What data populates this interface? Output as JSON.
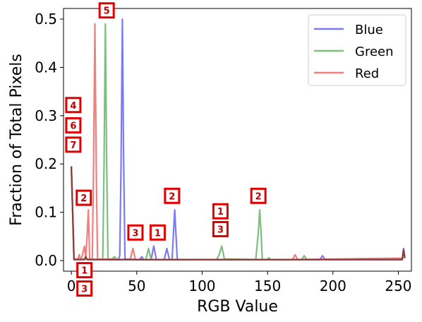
{
  "chart_data": {
    "type": "line",
    "xlabel": "RGB Value",
    "ylabel": "Fraction of Total Pixels",
    "xlim": [
      -6,
      260
    ],
    "ylim": [
      -0.022,
      0.522
    ],
    "xticks": [
      0,
      50,
      100,
      150,
      200,
      250
    ],
    "yticks": [
      0.0,
      0.1,
      0.2,
      0.3,
      0.4,
      0.5
    ],
    "xtick_labels": [
      "0",
      "50",
      "100",
      "150",
      "200",
      "250"
    ],
    "ytick_labels": [
      "0.0",
      "0.1",
      "0.2",
      "0.3",
      "0.4",
      "0.5"
    ],
    "grid": false,
    "legend_position": "top-right",
    "series": [
      {
        "name": "Blue",
        "color": "#7b7bf0",
        "points": [
          [
            0,
            0.195
          ],
          [
            1,
            0.1
          ],
          [
            2,
            0.003
          ],
          [
            30,
            0.002
          ],
          [
            36,
            0.002
          ],
          [
            37,
            0.01
          ],
          [
            38,
            0.2
          ],
          [
            39,
            0.5
          ],
          [
            40,
            0.2
          ],
          [
            41,
            0.003
          ],
          [
            52,
            0.002
          ],
          [
            54,
            0.008
          ],
          [
            55,
            0.002
          ],
          [
            61,
            0.002
          ],
          [
            63,
            0.03
          ],
          [
            65,
            0.002
          ],
          [
            71,
            0.002
          ],
          [
            73,
            0.025
          ],
          [
            75,
            0.002
          ],
          [
            77,
            0.002
          ],
          [
            79,
            0.105
          ],
          [
            81,
            0.002
          ],
          [
            190,
            0.002
          ],
          [
            192,
            0.01
          ],
          [
            194,
            0.002
          ],
          [
            253,
            0.002
          ],
          [
            254,
            0.025
          ],
          [
            255,
            0.005
          ]
        ]
      },
      {
        "name": "Green",
        "color": "#7dbf7d",
        "points": [
          [
            0,
            0.195
          ],
          [
            1,
            0.1
          ],
          [
            2,
            0.003
          ],
          [
            24,
            0.002
          ],
          [
            25,
            0.2
          ],
          [
            26,
            0.49
          ],
          [
            27,
            0.2
          ],
          [
            28,
            0.003
          ],
          [
            31,
            0.003
          ],
          [
            33,
            0.008
          ],
          [
            35,
            0.002
          ],
          [
            57,
            0.002
          ],
          [
            59,
            0.025
          ],
          [
            61,
            0.002
          ],
          [
            111,
            0.002
          ],
          [
            113,
            0.012
          ],
          [
            115,
            0.03
          ],
          [
            117,
            0.003
          ],
          [
            141,
            0.002
          ],
          [
            143,
            0.06
          ],
          [
            144,
            0.105
          ],
          [
            145,
            0.06
          ],
          [
            146,
            0.002
          ],
          [
            150,
            0.002
          ],
          [
            151,
            0.006
          ],
          [
            152,
            0.002
          ],
          [
            176,
            0.002
          ],
          [
            178,
            0.01
          ],
          [
            180,
            0.002
          ],
          [
            254,
            0.005
          ]
        ]
      },
      {
        "name": "Red",
        "color": "#f08080",
        "points": [
          [
            0,
            0.195
          ],
          [
            1,
            0.1
          ],
          [
            2,
            0.003
          ],
          [
            5,
            0.003
          ],
          [
            6,
            0.012
          ],
          [
            7,
            0.004
          ],
          [
            8,
            0.006
          ],
          [
            10,
            0.03
          ],
          [
            11,
            0.004
          ],
          [
            12,
            0.05
          ],
          [
            13,
            0.105
          ],
          [
            14,
            0.004
          ],
          [
            16,
            0.003
          ],
          [
            17,
            0.2
          ],
          [
            18,
            0.49
          ],
          [
            19,
            0.2
          ],
          [
            20,
            0.003
          ],
          [
            45,
            0.002
          ],
          [
            47,
            0.025
          ],
          [
            49,
            0.002
          ],
          [
            169,
            0.002
          ],
          [
            171,
            0.012
          ],
          [
            173,
            0.002
          ],
          [
            254,
            0.005
          ]
        ]
      }
    ],
    "dark_overlay": {
      "color": "#8b3a3a",
      "points": [
        [
          0,
          0.195
        ],
        [
          1,
          0.1
        ],
        [
          2,
          0.002
        ],
        [
          10,
          0.002
        ],
        [
          11,
          0.008
        ],
        [
          12,
          0.002
        ],
        [
          253,
          0.002
        ],
        [
          254,
          0.022
        ],
        [
          255,
          0.005
        ]
      ]
    },
    "annotations": [
      {
        "text": "5",
        "x": 27,
        "y": 0.518
      },
      {
        "text": "4",
        "x": 1.5,
        "y": 0.322
      },
      {
        "text": "6",
        "x": 1.5,
        "y": 0.28
      },
      {
        "text": "7",
        "x": 1.5,
        "y": 0.24
      },
      {
        "text": "2",
        "x": 9.5,
        "y": 0.13
      },
      {
        "text": "2",
        "x": 77,
        "y": 0.134
      },
      {
        "text": "2",
        "x": 143,
        "y": 0.134
      },
      {
        "text": "1",
        "x": 114,
        "y": 0.102
      },
      {
        "text": "3",
        "x": 114,
        "y": 0.065
      },
      {
        "text": "3",
        "x": 49,
        "y": 0.058
      },
      {
        "text": "1",
        "x": 66,
        "y": 0.058
      },
      {
        "text": "1",
        "x": 10,
        "y": -0.02
      },
      {
        "text": "3",
        "x": 10,
        "y": -0.058
      }
    ]
  }
}
